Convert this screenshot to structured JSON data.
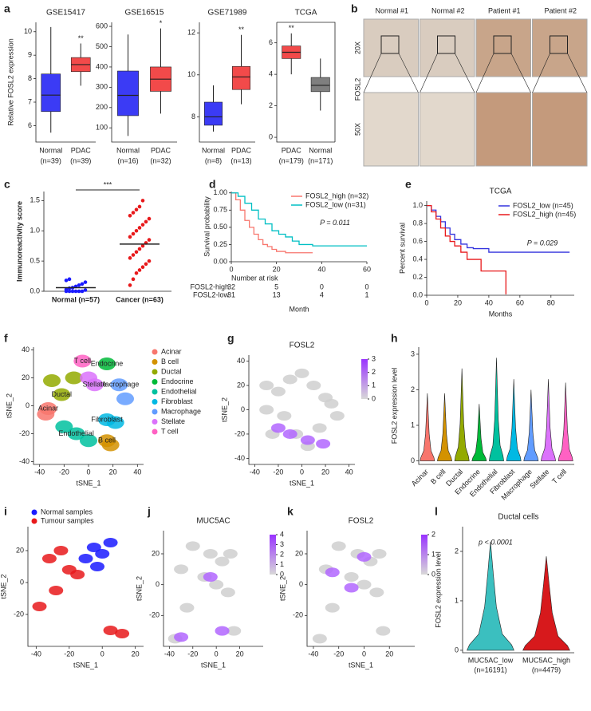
{
  "chart_data": [
    {
      "type": "box",
      "panel": "a",
      "title": "GSE15417",
      "ylabel": "Relative FOSL2 expression",
      "categories": [
        "Normal",
        "PDAC"
      ],
      "n_labels": [
        "(n=39)",
        "(n=39)"
      ],
      "colors": [
        "#3b3bf5",
        "#f24a4a"
      ],
      "q1": [
        6.6,
        8.3
      ],
      "median": [
        7.3,
        8.6
      ],
      "q3": [
        8.2,
        8.9
      ],
      "whisker_low": [
        5.7,
        7.7
      ],
      "whisker_high": [
        10.2,
        9.5
      ],
      "stars": [
        null,
        "**"
      ],
      "ylim": [
        5.3,
        10.4
      ],
      "yticks": [
        6,
        7,
        8,
        9,
        10
      ]
    },
    {
      "type": "box",
      "title": "GSE16515",
      "categories": [
        "Normal",
        "PDAC"
      ],
      "n_labels": [
        "(n=16)",
        "(n=32)"
      ],
      "colors": [
        "#3b3bf5",
        "#f24a4a"
      ],
      "q1": [
        160,
        280
      ],
      "median": [
        260,
        340
      ],
      "q3": [
        380,
        400
      ],
      "whisker_low": [
        60,
        170
      ],
      "whisker_high": [
        560,
        590
      ],
      "stars": [
        null,
        "*"
      ],
      "ylim": [
        30,
        620
      ],
      "yticks": [
        100,
        200,
        300,
        400,
        500,
        600
      ]
    },
    {
      "type": "box",
      "title": "GSE71989",
      "categories": [
        "Normal",
        "PDAC"
      ],
      "n_labels": [
        "(n=8)",
        "(n=13)"
      ],
      "colors": [
        "#3b3bf5",
        "#f24a4a"
      ],
      "q1": [
        7.6,
        9.3
      ],
      "median": [
        8.0,
        9.9
      ],
      "q3": [
        8.7,
        10.4
      ],
      "whisker_low": [
        7.3,
        8.6
      ],
      "whisker_high": [
        9.5,
        11.9
      ],
      "stars": [
        null,
        "**"
      ],
      "ylim": [
        6.8,
        12.5
      ],
      "yticks": [
        8,
        10,
        12
      ]
    },
    {
      "type": "box",
      "title": "TCGA",
      "frame": true,
      "categories": [
        "PDAC",
        "Normal"
      ],
      "n_labels": [
        "(n=179)",
        "(n=171)"
      ],
      "colors": [
        "#f24a4a",
        "#7f7f7f"
      ],
      "q1": [
        5.0,
        2.9
      ],
      "median": [
        5.4,
        3.3
      ],
      "q3": [
        5.8,
        3.8
      ],
      "whisker_low": [
        4.0,
        1.7
      ],
      "whisker_high": [
        6.6,
        5.0
      ],
      "stars": [
        "**",
        null
      ],
      "ylim": [
        -0.3,
        7.3
      ],
      "yticks": [
        0,
        2,
        4,
        6
      ]
    },
    {
      "type": "dot",
      "panel": "c",
      "ylabel": "Immunoreactivity score",
      "categories": [
        "Normal (n=57)",
        "Cancer (n=63)"
      ],
      "colors": [
        "#1a1aff",
        "#e8191b"
      ],
      "significance": "***",
      "values": [
        [
          0,
          0,
          0,
          0,
          0,
          0,
          0.02,
          0.03,
          0.05,
          0.06,
          0.08,
          0.1,
          0.12,
          0.15,
          0.18,
          0.2
        ],
        [
          0.1,
          0.2,
          0.3,
          0.35,
          0.4,
          0.45,
          0.5,
          0.55,
          0.6,
          0.65,
          0.7,
          0.75,
          0.8,
          0.85,
          0.9,
          0.95,
          1.0,
          1.05,
          1.1,
          1.15,
          1.2,
          1.25,
          1.3,
          1.35,
          1.4,
          1.5
        ]
      ],
      "means": [
        0.06,
        0.78
      ],
      "ylim": [
        0,
        1.65
      ],
      "yticks": [
        {
          "value": 0,
          "label": "0.0"
        },
        0.5,
        {
          "value": 1,
          "label": "1.0"
        },
        1.5
      ]
    },
    {
      "type": "step",
      "panel": "d",
      "xlabel": "Month",
      "ylabel": "Survival probability",
      "annotation": "P = 0.011",
      "legend": "upper right",
      "series": [
        {
          "name": "FOSL2_high (n=32)",
          "color": "#f8766d",
          "x": [
            0,
            2,
            4,
            6,
            8,
            10,
            12,
            14,
            16,
            18,
            20,
            24,
            30,
            36
          ],
          "values": [
            1,
            0.9,
            0.75,
            0.6,
            0.5,
            0.4,
            0.32,
            0.25,
            0.22,
            0.18,
            0.15,
            0.13,
            0.13,
            0.13
          ]
        },
        {
          "name": "FOSL2_low (n=31)",
          "color": "#00bfc4",
          "x": [
            0,
            3,
            6,
            9,
            12,
            15,
            18,
            21,
            24,
            27,
            30,
            36,
            60
          ],
          "values": [
            1,
            0.95,
            0.85,
            0.75,
            0.62,
            0.55,
            0.45,
            0.4,
            0.36,
            0.3,
            0.25,
            0.23,
            0.23
          ]
        }
      ],
      "risk_table": {
        "title": "Number at risk",
        "rows": [
          {
            "name": "FOSL2-high",
            "color": "#f8766d",
            "values": [
              32,
              5,
              0,
              0
            ]
          },
          {
            "name": "FOSL2-low",
            "color": "#00bfc4",
            "values": [
              31,
              13,
              4,
              1
            ]
          }
        ]
      },
      "xlim": [
        0,
        60
      ],
      "xticks": [
        0,
        20,
        40,
        60
      ],
      "ylim": [
        0,
        1.02
      ],
      "yticks": [
        {
          "value": 0,
          "label": "0.00"
        },
        0.25,
        {
          "value": 0.5,
          "label": "0.50"
        },
        0.75,
        {
          "value": 1,
          "label": "1.00"
        }
      ]
    },
    {
      "type": "step",
      "panel": "e",
      "title": "TCGA",
      "xlabel": "Months",
      "ylabel": "Percent survival",
      "annotation": "P = 0.029",
      "legend": "upper right",
      "series": [
        {
          "name": "FOSL2_low (n=45)",
          "color": "#3333dd",
          "x": [
            0,
            3,
            6,
            9,
            12,
            15,
            18,
            22,
            26,
            30,
            35,
            40,
            92
          ],
          "values": [
            1,
            0.95,
            0.88,
            0.82,
            0.75,
            0.68,
            0.62,
            0.57,
            0.53,
            0.52,
            0.52,
            0.48,
            0.48
          ]
        },
        {
          "name": "FOSL2_high (n=45)",
          "color": "#e8191b",
          "x": [
            0,
            3,
            6,
            9,
            12,
            15,
            18,
            22,
            26,
            35,
            45,
            51,
            51
          ],
          "values": [
            1,
            0.93,
            0.85,
            0.75,
            0.66,
            0.6,
            0.55,
            0.48,
            0.4,
            0.27,
            0.27,
            0.27,
            0.01
          ]
        }
      ],
      "xlim": [
        0,
        95
      ],
      "xticks": [
        0,
        20,
        40,
        60,
        80
      ],
      "ylim": [
        0,
        1.05
      ],
      "yticks": [
        {
          "value": 0,
          "label": "0.0"
        },
        0.2,
        0.4,
        0.6,
        0.8,
        {
          "value": 1,
          "label": "1.0"
        }
      ]
    },
    {
      "type": "tsne",
      "panel": "f",
      "xlabel": "tSNE_1",
      "ylabel": "tSNE_2",
      "legend": "right",
      "labels_on_plot": true,
      "series": [
        {
          "name": "Acinar",
          "color": "#f8766d",
          "x": [
            -33,
            -35
          ],
          "y": [
            -2,
            -6
          ]
        },
        {
          "name": "B cell",
          "color": "#d39200",
          "x": [
            15,
            18
          ],
          "y": [
            -25,
            -28
          ]
        },
        {
          "name": "Ductal",
          "color": "#93aa00",
          "x": [
            -22,
            -30,
            -12
          ],
          "y": [
            8,
            18,
            20
          ]
        },
        {
          "name": "Endocrine",
          "color": "#00ba38",
          "x": [
            15
          ],
          "y": [
            30
          ]
        },
        {
          "name": "Endothelial",
          "color": "#00c19f",
          "x": [
            -10,
            0,
            -20
          ],
          "y": [
            -20,
            -25,
            -15
          ]
        },
        {
          "name": "Fibroblast",
          "color": "#00b9e3",
          "x": [
            15,
            22
          ],
          "y": [
            -10,
            -12
          ]
        },
        {
          "name": "Macrophage",
          "color": "#619cff",
          "x": [
            25,
            30
          ],
          "y": [
            15,
            5
          ]
        },
        {
          "name": "Stellate",
          "color": "#db72fb",
          "x": [
            5,
            0
          ],
          "y": [
            15,
            20
          ]
        },
        {
          "name": "T cell",
          "color": "#ff61c3",
          "x": [
            -5
          ],
          "y": [
            32
          ]
        }
      ],
      "xlim": [
        -45,
        45
      ],
      "xticks": [
        -40,
        -20,
        0,
        20,
        40
      ],
      "ylim": [
        -42,
        42
      ],
      "yticks": [
        -40,
        -20,
        0,
        20,
        40
      ]
    },
    {
      "type": "tsne",
      "panel": "g",
      "title": "FOSL2",
      "xlabel": "tSNE_1",
      "ylabel": "tSNE_2",
      "series": [
        {
          "color": "#cfcfcf",
          "x": [
            -30,
            -20,
            -10,
            0,
            10,
            20,
            30,
            -25,
            -5,
            15,
            25,
            -15,
            5,
            -30
          ],
          "y": [
            0,
            15,
            25,
            30,
            20,
            10,
            -5,
            -20,
            -20,
            -15,
            5,
            -5,
            -30,
            20
          ]
        },
        {
          "color": "#b266ff",
          "x": [
            -10,
            5,
            -20,
            18
          ],
          "y": [
            -20,
            -25,
            -15,
            -28
          ]
        }
      ],
      "colorbar": {
        "ticks": [
          0,
          1,
          2,
          3
        ],
        "colors": [
          "#d8d8d8",
          "#9933ff"
        ]
      },
      "xlim": [
        -45,
        45
      ],
      "xticks": [
        -40,
        -20,
        0,
        20,
        40
      ],
      "ylim": [
        -45,
        45
      ],
      "yticks": [
        -40,
        -20,
        0,
        20,
        40
      ]
    },
    {
      "type": "violin",
      "panel": "h",
      "ylabel": "FOSL2 expression level",
      "rotate_labels": true,
      "categories": [
        "Acinar",
        "B cell",
        "Ductal",
        "Endocrine",
        "Endothelial",
        "Fibroblast",
        "Macrophage",
        "Stellate",
        "T cell"
      ],
      "colors": [
        "#f8766d",
        "#d39200",
        "#93aa00",
        "#00ba38",
        "#00c19f",
        "#00b9e3",
        "#619cff",
        "#db72fb",
        "#ff61c3"
      ],
      "values": [
        1.9,
        1.9,
        2.6,
        1.6,
        2.9,
        2.3,
        2.0,
        2.3,
        2.2
      ],
      "ylim": [
        -0.1,
        3.2
      ],
      "yticks": [
        0,
        1,
        2,
        3
      ]
    },
    {
      "type": "tsne",
      "panel": "i",
      "xlabel": "tSNE_1",
      "ylabel": "tSNE_2",
      "legend": "upper left",
      "series": [
        {
          "name": "Normal samples",
          "color": "#1a1aff",
          "x": [
            -5,
            0,
            5,
            -10,
            -3
          ],
          "y": [
            22,
            18,
            25,
            15,
            10
          ]
        },
        {
          "name": "Tumour samples",
          "color": "#e8191b",
          "x": [
            -32,
            -25,
            -20,
            -15,
            -38,
            5,
            12,
            -28
          ],
          "y": [
            15,
            20,
            8,
            5,
            -15,
            -30,
            -32,
            -5
          ]
        }
      ],
      "xlim": [
        -45,
        25
      ],
      "xticks": [
        -40,
        -20,
        0,
        20
      ],
      "ylim": [
        -40,
        35
      ],
      "yticks": [
        -20,
        0,
        20
      ]
    },
    {
      "type": "tsne",
      "panel": "j",
      "title": "MUC5AC",
      "xlabel": "tSNE_1",
      "ylabel": "tSNE_2",
      "series": [
        {
          "color": "#cfcfcf",
          "x": [
            -20,
            -5,
            5,
            -30,
            -10,
            0,
            10,
            15,
            -35,
            -25,
            12
          ],
          "y": [
            25,
            20,
            15,
            10,
            5,
            0,
            -5,
            -30,
            -35,
            -15,
            20
          ]
        },
        {
          "color": "#b266ff",
          "x": [
            -5,
            5,
            -30
          ],
          "y": [
            5,
            -30,
            -34
          ]
        }
      ],
      "colorbar": {
        "ticks": [
          0,
          1,
          2,
          3,
          4
        ],
        "colors": [
          "#d8d8d8",
          "#9933ff"
        ]
      },
      "xlim": [
        -45,
        40
      ],
      "xticks": [
        -40,
        -20,
        0,
        20
      ],
      "ylim": [
        -40,
        35
      ],
      "yticks": [
        -20,
        0,
        20
      ]
    },
    {
      "type": "tsne",
      "panel": "k",
      "title": "FOSL2",
      "xlabel": "tSNE_1",
      "ylabel": "tSNE_2",
      "series": [
        {
          "color": "#cfcfcf",
          "x": [
            -20,
            -5,
            5,
            -30,
            -10,
            0,
            10,
            15,
            -35,
            -25,
            12
          ],
          "y": [
            25,
            20,
            15,
            10,
            5,
            0,
            -5,
            -30,
            -35,
            -15,
            20
          ]
        },
        {
          "color": "#b266ff",
          "x": [
            -10,
            0,
            -25
          ],
          "y": [
            -2,
            18,
            8
          ]
        }
      ],
      "colorbar": {
        "ticks": [
          0,
          1,
          2
        ],
        "colors": [
          "#d8d8d8",
          "#9933ff"
        ]
      },
      "xlim": [
        -45,
        40
      ],
      "xticks": [
        -40,
        -20,
        0,
        20
      ],
      "ylim": [
        -40,
        35
      ],
      "yticks": [
        -20,
        0,
        20
      ]
    },
    {
      "type": "violin",
      "panel": "l",
      "title": "Ductal cells",
      "annotation": "p < 0.0001",
      "ylabel": "FOSL2 expression level",
      "categories": [
        "MUC5AC_low",
        "MUC5AC_high"
      ],
      "n_labels": [
        "(n=16191)",
        "(n=4479)"
      ],
      "colors": [
        "#3bbfbf",
        "#d7191c"
      ],
      "values": [
        2.2,
        1.9
      ],
      "ylim": [
        -0.05,
        2.5
      ],
      "yticks": [
        0,
        1,
        2
      ]
    }
  ],
  "histology": {
    "panel": "b",
    "columns": [
      "Normal #1",
      "Normal #2",
      "Patient #1",
      "Patient #2"
    ],
    "row_labels": [
      "20X",
      "FOSL2",
      "50X"
    ]
  }
}
